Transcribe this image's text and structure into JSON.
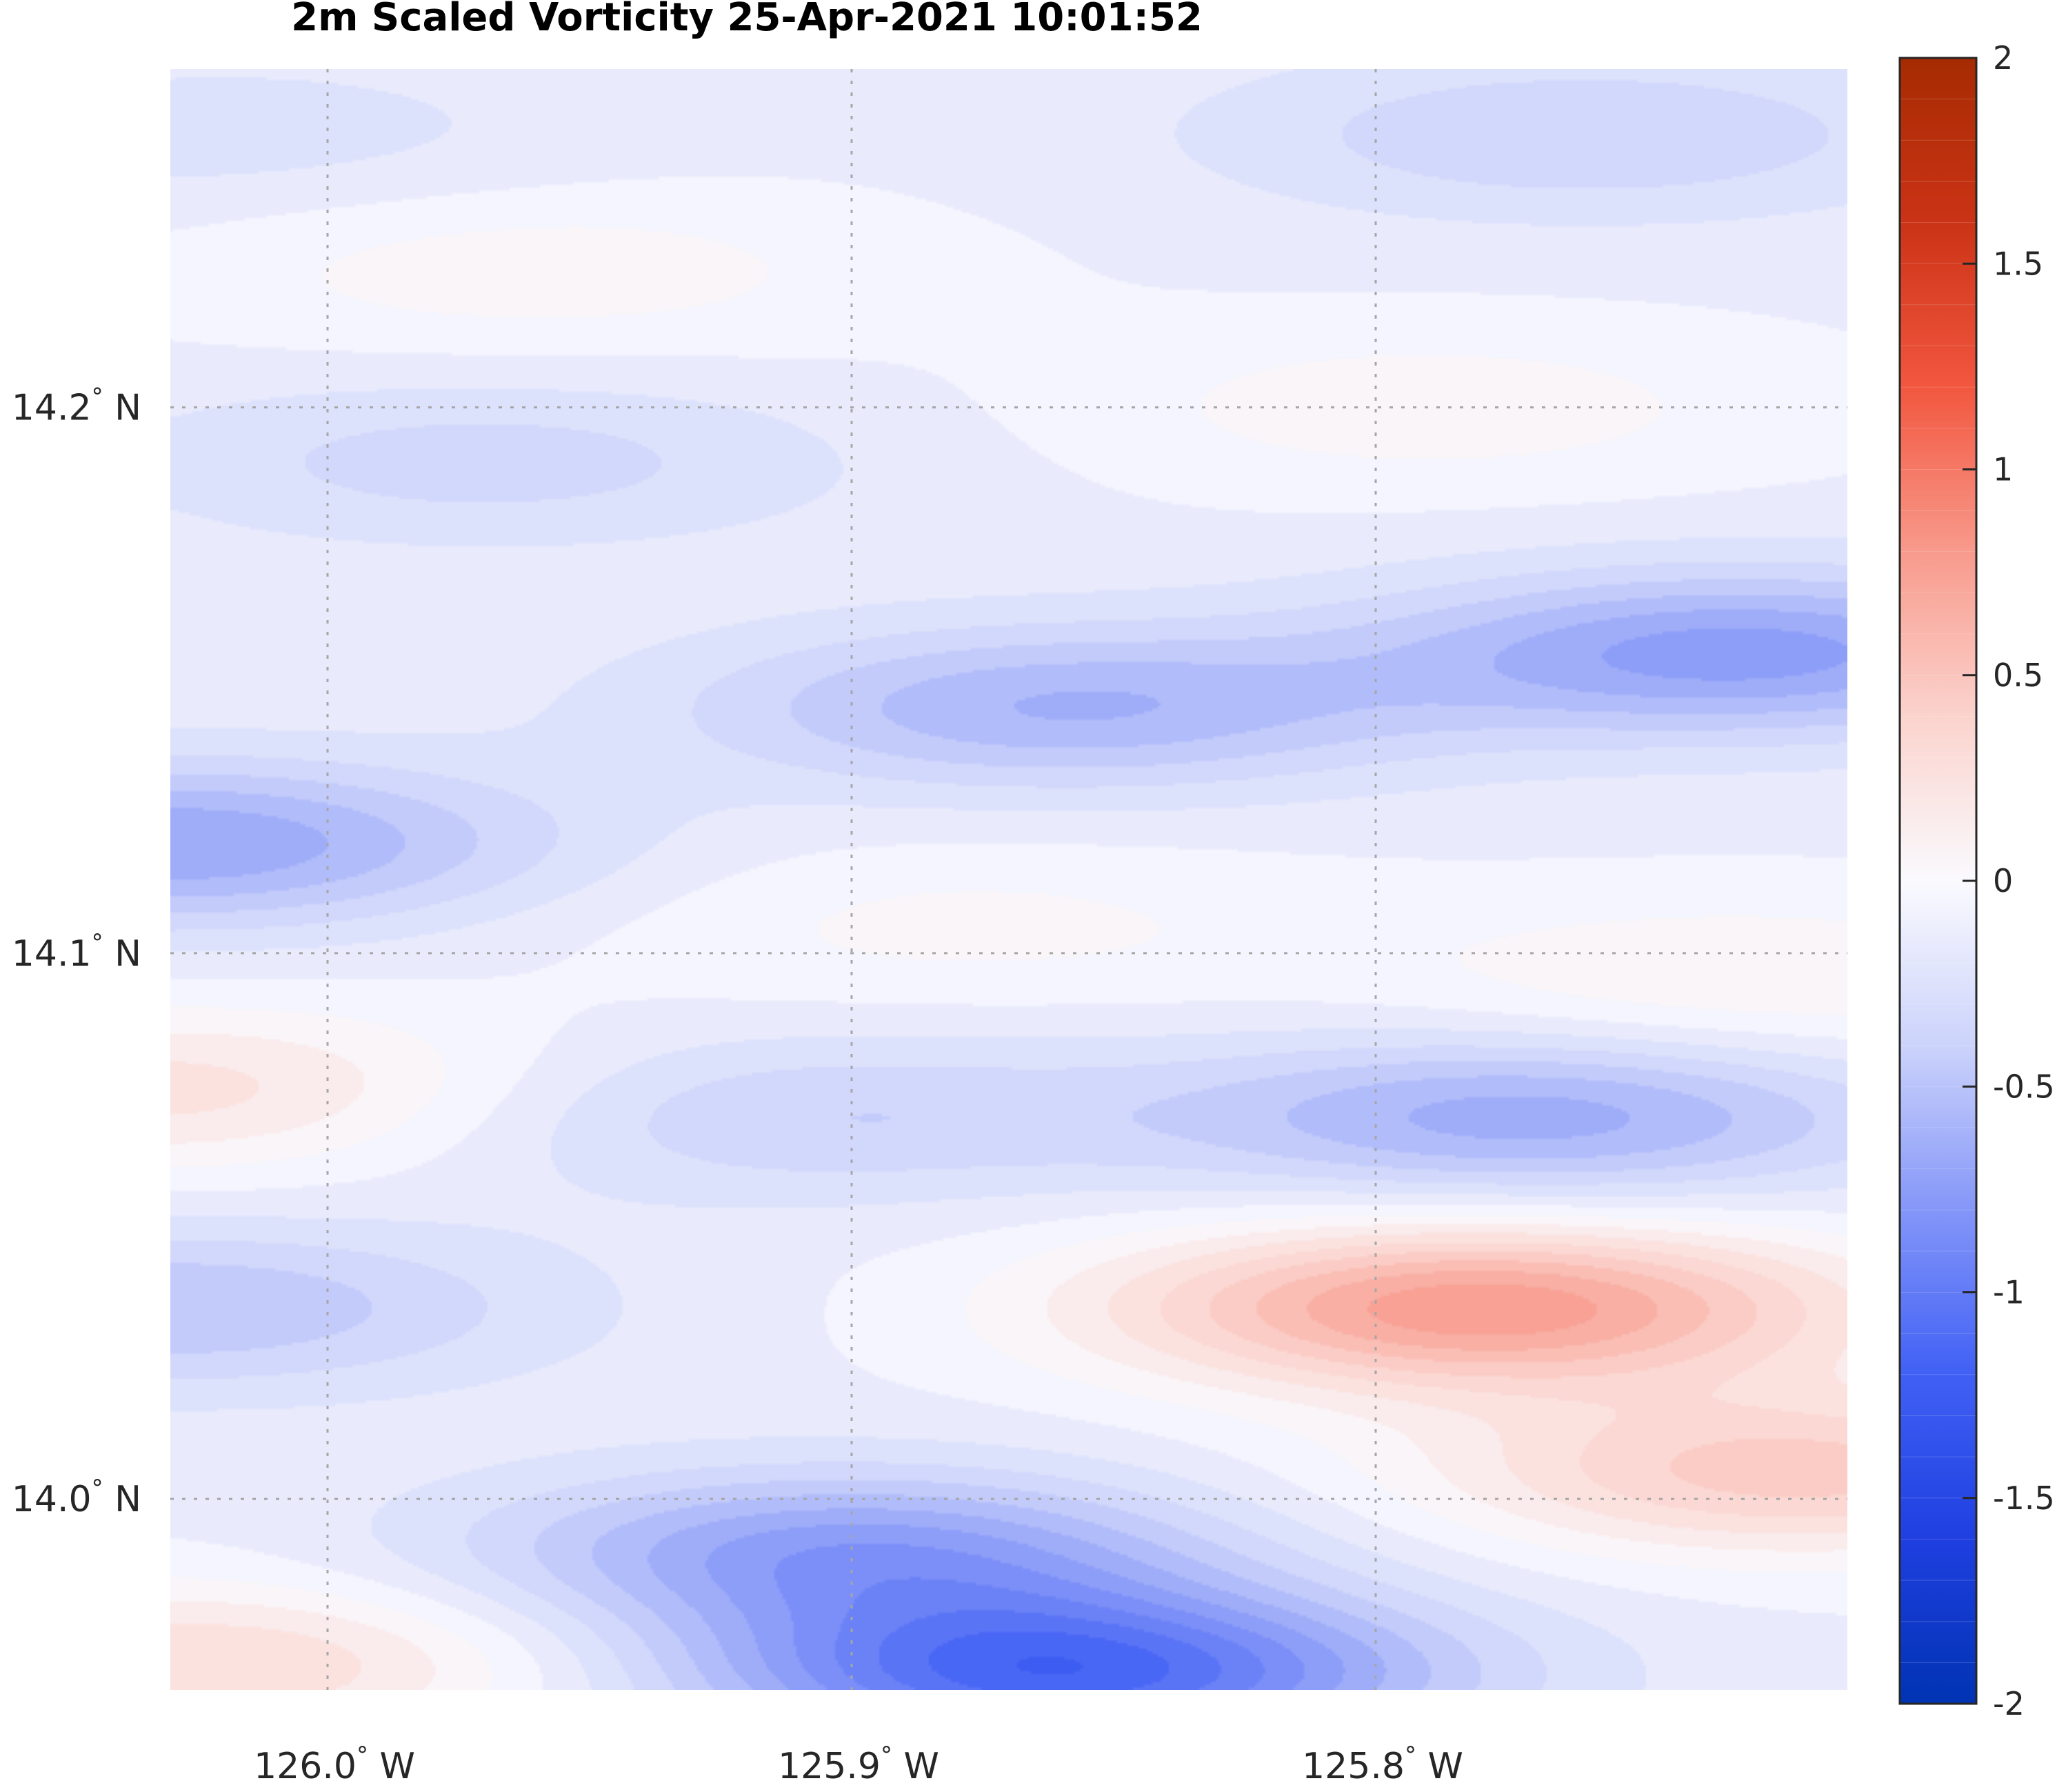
{
  "chart_data": {
    "type": "heatmap",
    "title": "2m Scaled Vorticity  25-Apr-2021 10:01:52",
    "xlabel": "",
    "ylabel": "",
    "plot_style": "filled contour map",
    "x_ticks": [
      {
        "value": -126.0,
        "label": "126.0",
        "suffix": "W"
      },
      {
        "value": -125.9,
        "label": "125.9",
        "suffix": "W"
      },
      {
        "value": -125.8,
        "label": "125.8",
        "suffix": "W"
      }
    ],
    "y_ticks": [
      {
        "value": 14.2,
        "label": "14.2",
        "suffix": "N"
      },
      {
        "value": 14.1,
        "label": "14.1",
        "suffix": "N"
      },
      {
        "value": 14.0,
        "label": "14.0",
        "suffix": "N"
      }
    ],
    "degree_symbol": "°",
    "xlim": [
      -126.03,
      -125.71
    ],
    "ylim": [
      13.965,
      14.262
    ],
    "grid": true,
    "colorbar": {
      "range": [
        -2,
        2
      ],
      "ticks": [
        2,
        1.5,
        1,
        0.5,
        0,
        -0.5,
        -1,
        -1.5,
        -2
      ],
      "tick_labels": [
        "2",
        "1.5",
        "1",
        "0.5",
        "0",
        "-0.5",
        "-1",
        "-1.5",
        "-2"
      ],
      "placement": "right",
      "levels": 40,
      "colormap": [
        "#0033b3",
        "#1f3fe0",
        "#4060f5",
        "#8496f8",
        "#ccd3fb",
        "#fafafe",
        "#fbd3cd",
        "#f89a8c",
        "#f2573f",
        "#cb3316",
        "#a62b02"
      ]
    },
    "field_features": [
      {
        "lon": -125.78,
        "lat": 14.035,
        "value": 0.78,
        "kind": "max"
      },
      {
        "lon": -125.72,
        "lat": 14.005,
        "value": 0.45,
        "kind": "max"
      },
      {
        "lon": -126.03,
        "lat": 14.075,
        "value": 0.25,
        "kind": "max"
      },
      {
        "lon": -126.02,
        "lat": 13.97,
        "value": 0.3,
        "kind": "max"
      },
      {
        "lon": -125.73,
        "lat": 14.095,
        "value": 0.1,
        "kind": "max"
      },
      {
        "lon": -125.96,
        "lat": 14.225,
        "value": 0.06,
        "kind": "max"
      },
      {
        "lon": -125.79,
        "lat": 14.2,
        "value": 0.06,
        "kind": "max"
      },
      {
        "lon": -125.88,
        "lat": 14.105,
        "value": 0.03,
        "kind": "max"
      },
      {
        "lon": -125.86,
        "lat": 13.968,
        "value": -1.15,
        "kind": "min"
      },
      {
        "lon": -125.9,
        "lat": 13.99,
        "value": -0.75,
        "kind": "min"
      },
      {
        "lon": -125.77,
        "lat": 14.07,
        "value": -0.65,
        "kind": "min"
      },
      {
        "lon": -125.86,
        "lat": 14.145,
        "value": -0.6,
        "kind": "min"
      },
      {
        "lon": -125.73,
        "lat": 14.155,
        "value": -0.75,
        "kind": "min"
      },
      {
        "lon": -126.03,
        "lat": 14.12,
        "value": -0.7,
        "kind": "min"
      },
      {
        "lon": -126.03,
        "lat": 14.035,
        "value": -0.5,
        "kind": "min"
      },
      {
        "lon": -125.91,
        "lat": 14.07,
        "value": -0.4,
        "kind": "min"
      },
      {
        "lon": -125.97,
        "lat": 14.19,
        "value": -0.35,
        "kind": "min"
      },
      {
        "lon": -125.76,
        "lat": 14.25,
        "value": -0.4,
        "kind": "min"
      },
      {
        "lon": -126.02,
        "lat": 14.25,
        "value": -0.25,
        "kind": "min"
      }
    ]
  }
}
